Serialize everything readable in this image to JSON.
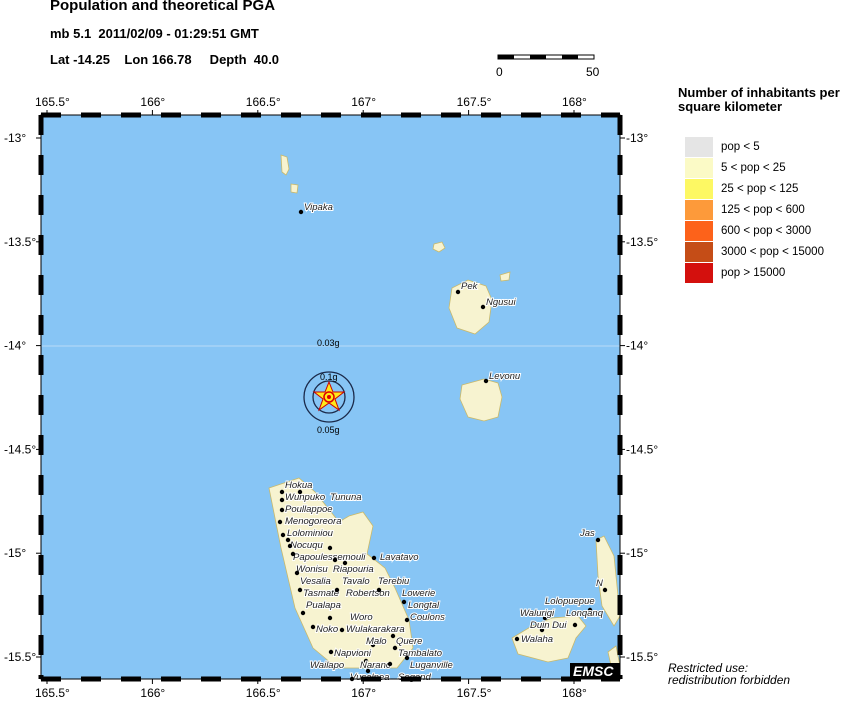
{
  "header": {
    "title": "Population and theoretical PGA",
    "event_line": "mb 5.1  2011/02/09 - 01:29:51 GMT",
    "location_line": "Lat -14.25    Lon 166.78     Depth  40.0"
  },
  "scale_bar": {
    "labels": [
      "0",
      "50"
    ]
  },
  "map": {
    "lon_ticks": [
      "165.5°",
      "166°",
      "166.5°",
      "167°",
      "167.5°",
      "168°"
    ],
    "lat_ticks": [
      "-13°",
      "-13.5°",
      "-14°",
      "-14.5°",
      "-15°",
      "-15.5°"
    ],
    "ocean_color": "#87c5f5",
    "land_color": "#f7f3d0",
    "epicenter": {
      "lat": -14.25,
      "lon": 166.78,
      "icon": "star-icon"
    },
    "pga_labels": [
      "0.03g",
      "0.1g",
      "0.05g"
    ],
    "places": [
      "Vipaka",
      "Pek",
      "Ngusui",
      "Levonu",
      "Hokua",
      "Wunpuko",
      "Tununa",
      "Poullappoe",
      "Menogoreora",
      "Lolominiou",
      "Nocuqu",
      "Papoulessemouli",
      "Wonisu",
      "Riapouria",
      "Lavatavo",
      "Tavalo",
      "Terebiu",
      "Vesalia",
      "Tasmate",
      "Robertson",
      "Lowerie",
      "Longtal",
      "Pualapa",
      "Woro",
      "Coulons",
      "Noko",
      "Wulakarakara",
      "Quere",
      "Malo",
      "Tambalato",
      "Napvioni",
      "Luganville",
      "Naranc",
      "Segond",
      "Vusalnea",
      "Wailapo",
      "Jas",
      "N",
      "Lolopuepue",
      "Walurigi",
      "Lonqanq",
      "Duin Dui",
      "Walaha"
    ],
    "logo": "EMSC"
  },
  "legend": {
    "title": "Number of inhabitants per square kilometer",
    "items": [
      {
        "label": "pop < 5",
        "color": "#e5e5e5"
      },
      {
        "label": "5 < pop < 25",
        "color": "#fbfac6"
      },
      {
        "label": "25 < pop < 125",
        "color": "#fdf863"
      },
      {
        "label": "125 < pop < 600",
        "color": "#fd9a3a"
      },
      {
        "label": "600 < pop < 3000",
        "color": "#fd621a"
      },
      {
        "label": "3000 < pop < 15000",
        "color": "#c54d17"
      },
      {
        "label": "pop > 15000",
        "color": "#d4100d"
      }
    ]
  },
  "notice": {
    "line1": "Restricted use:",
    "line2": "redistribution forbidden"
  }
}
